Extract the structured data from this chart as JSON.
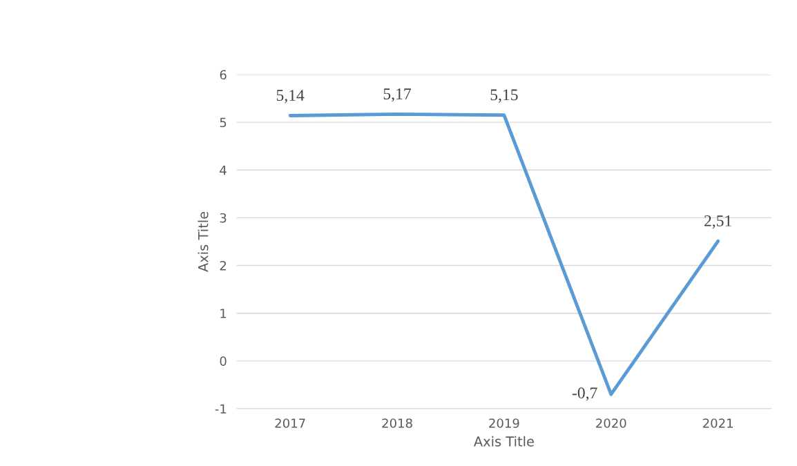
{
  "chart_data": {
    "type": "line",
    "xlabel": "Axis Title",
    "ylabel": "Axis Title",
    "categories": [
      "2017",
      "2018",
      "2019",
      "2020",
      "2021"
    ],
    "series": [
      {
        "color": "#5b9bd5",
        "values": [
          5.14,
          5.17,
          5.15,
          -0.7,
          2.51
        ],
        "value_labels": [
          "5,14",
          "5,17",
          "5,15",
          "-0,7",
          "2,51"
        ]
      }
    ],
    "ylim": [
      -1,
      6
    ],
    "yticks": [
      -1,
      0,
      1,
      2,
      3,
      4,
      5,
      6
    ],
    "grid": "y",
    "marker": "none",
    "line_style": "solid",
    "legend": false
  }
}
